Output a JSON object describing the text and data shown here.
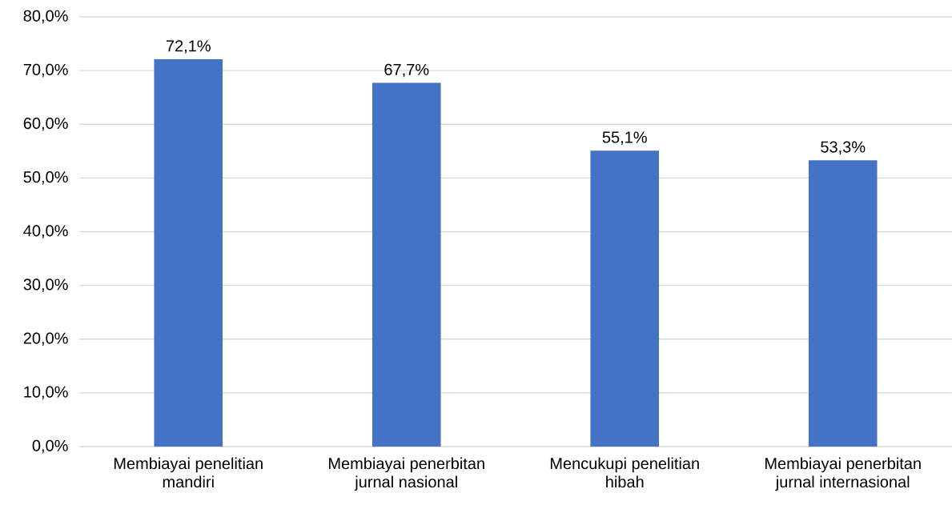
{
  "chart_data": {
    "type": "bar",
    "categories": [
      "Membiayai penelitian mandiri",
      "Membiayai penerbitan jurnal nasional",
      "Mencukupi penelitian hibah",
      "Membiayai penerbitan jurnal internasional"
    ],
    "values": [
      72.1,
      67.7,
      55.1,
      53.3
    ],
    "value_labels": [
      "72,1%",
      "67,7%",
      "55,1%",
      "53,3%"
    ],
    "color": "#4472c4",
    "ylim": [
      0,
      80
    ],
    "yticks": [
      {
        "value": 0,
        "label": "0,0%"
      },
      {
        "value": 10,
        "label": "10,0%"
      },
      {
        "value": 20,
        "label": "20,0%"
      },
      {
        "value": 30,
        "label": "30,0%"
      },
      {
        "value": 40,
        "label": "40,0%"
      },
      {
        "value": 50,
        "label": "50,0%"
      },
      {
        "value": 60,
        "label": "60,0%"
      },
      {
        "value": 70,
        "label": "70,0%"
      },
      {
        "value": 80,
        "label": "80,0%"
      }
    ],
    "grid": "y"
  }
}
